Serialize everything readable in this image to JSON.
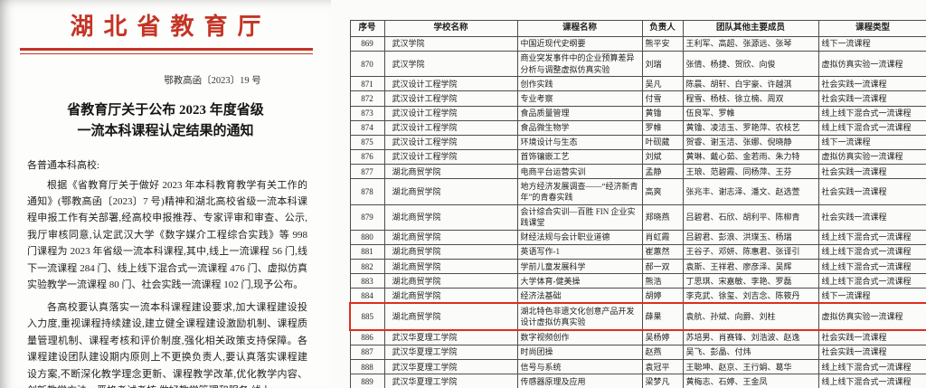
{
  "document": {
    "agency": "湖北省教育厅",
    "doc_number": "鄂教高函〔2023〕19 号",
    "title_line1": "省教育厅关于公布 2023 年度省级",
    "title_line2": "一流本科课程认定结果的通知",
    "salutation": "各普通本科高校:",
    "paragraph1": "根据《省教育厅关于做好 2023 年本科教育教学有关工作的通知》(鄂教高函〔2023〕7 号)精神和湖北高校省级一流本科课程申报工作有关部署,经高校申报推荐、专家评审和审查、公示,我厅审核同意,认定武汉大学《数字媒介工程综合实践》等 998 门课程为 2023 年省级一流本科课程,其中,线上一流课程 56 门,线下一流课程 284 门、线上线下混合式一流课程 476 门、虚拟仿真实验教学一流课程 80 门、社会实践一流课程 102 门,现予公布。",
    "paragraph2": "各高校要认真落实一流本科课程建设要求,加大课程建设投入力度,重视课程持续建设,建立健全课程建设激励机制、课程质量管理机制、课程考核和评价制度,强化相关政策支持保障。各课程建设团队建设期内原则上不更换负责人,要认真落实课程建设方案,不断深化教学理念更新、课程教学改革,优化教学内容、创新教学方法、严格考试考核,做好教学管理和服务;线上"
  },
  "table": {
    "headers": [
      "序号",
      "学校名称",
      "课程名称",
      "负责人",
      "团队其他主要成员",
      "课程类型"
    ],
    "highlighted_serial": "885",
    "rows": [
      [
        "869",
        "武汉学院",
        "中国近现代史纲要",
        "熊平安",
        "王利军、高超、张源远、张琴",
        "线下一流课程"
      ],
      [
        "870",
        "武汉学院",
        "商业突发事件中的企业预算差异分析与调整虚拟仿真实验",
        "刘瑞",
        "张倩、杨捷、贺欣、向俊",
        "虚拟仿真实验一流课程"
      ],
      [
        "871",
        "武汉设计工程学院",
        "创作实践",
        "吴凡",
        "陈晨、胡轩、白宇豪、许越淇",
        "社会实践一流课程"
      ],
      [
        "872",
        "武汉设计工程学院",
        "专业考察",
        "付雪",
        "程雪、杨枝、徐立楠、周双",
        "社会实践一流课程"
      ],
      [
        "873",
        "武汉设计工程学院",
        "食品质量管理",
        "黄镥",
        "伍良军、罗帷",
        "线上线下混合式一流课程"
      ],
      [
        "874",
        "武汉设计工程学院",
        "食品微生物学",
        "罗帷",
        "黄镥、凌洁玉、罗艳萍、农枝艺",
        "线上线下混合式一流课程"
      ],
      [
        "875",
        "武汉设计工程学院",
        "环境设计与生态",
        "叶砚葳",
        "贺睿、谢玉洁、张娜、倪晓静",
        "线下一流课程"
      ],
      [
        "876",
        "武汉设计工程学院",
        "首饰镶嵌工艺",
        "刘斌",
        "黄琳、戴心茹、金若雨、朱力特",
        "虚拟仿真实验一流课程"
      ],
      [
        "877",
        "湖北商贸学院",
        "电商平台运营实训",
        "孟静",
        "王琅、范碧霞、同杨萍、王芬",
        "社会实践一流课程"
      ],
      [
        "878",
        "湖北商贸学院",
        "地方经济发展调查——“经济新青年”的青春实践",
        "高爽",
        "张兆丰、谢志泽、潘文、赵选萱",
        "社会实践一流课程"
      ],
      [
        "879",
        "湖北商贸学院",
        "会计综合实训—百胜 FIN 企业实践课堂",
        "郑晓燕",
        "吕碧君、石欣、胡利平、陈柳青",
        "社会实践一流课程"
      ],
      [
        "880",
        "湖北商贸学院",
        "财经法规与会计职业道德",
        "肖虹霞",
        "吕碧君、彭浪、洪璞玉、杨瑞",
        "线上线下混合式一流课程"
      ],
      [
        "881",
        "湖北商贸学院",
        "英语写作-1",
        "崔蕙然",
        "王谷子、邓妍、陈惠君、张译引",
        "线上线下混合式一流课程"
      ],
      [
        "882",
        "湖北商贸学院",
        "学前儿童发展科学",
        "郝一双",
        "袁斯、王祥君、廖彦泽、吴辉",
        "线上线下混合式一流课程"
      ],
      [
        "883",
        "湖北商贸学院",
        "大学体育-健美操",
        "熊浩",
        "丁思琪、宋嘉敏、李艳、罗磊",
        "线上线下混合式一流课程"
      ],
      [
        "884",
        "湖北商贸学院",
        "经济法基础",
        "胡婷",
        "李克武、徐玺、刘吉念、陈筱丹",
        "线下一流课程"
      ],
      [
        "885",
        "湖北商贸学院",
        "湖北特色非遗文化创意产品开发设计虚拟仿真实验",
        "薛果",
        "袁航、孙斌、向爵、刘柱",
        "虚拟仿真实验一流课程"
      ],
      [
        "886",
        "武汉华夏理工学院",
        "数字视频创作",
        "吴杨婷",
        "苏培男、肖赛锋、刘浩波、赵逸",
        "社会实践一流课程"
      ],
      [
        "887",
        "武汉华夏理工学院",
        "时尚团操",
        "赵燕",
        "吴飞、彭晶、付炜",
        "社会实践一流课程"
      ],
      [
        "888",
        "武汉华夏理工学院",
        "信号与系统",
        "袁冠平",
        "王聪坤、赵京、王行娟、葛华",
        "线上线下混合式一流课程"
      ],
      [
        "889",
        "武汉华夏理工学院",
        "传感器原理及应用",
        "梁梦凡",
        "黄梅志、石婷、王金凤",
        "线上线下混合式一流课程"
      ]
    ]
  },
  "colors": {
    "accent_red": "#c43425",
    "highlight_red": "#df2d20",
    "table_border": "#4d4d4d"
  }
}
